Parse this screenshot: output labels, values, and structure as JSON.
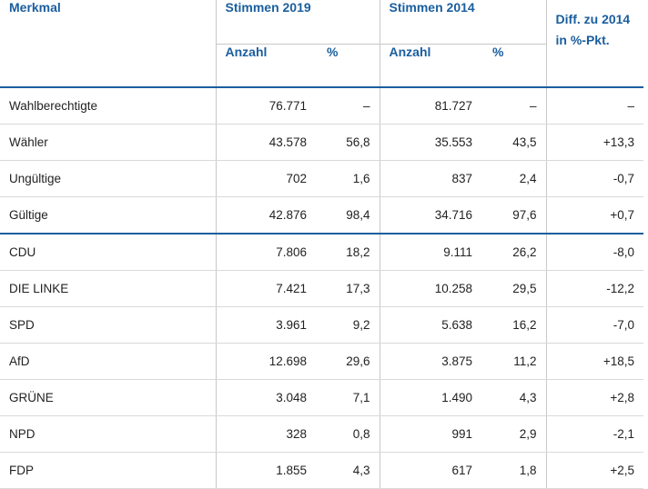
{
  "table": {
    "headers": {
      "merkmal": "Merkmal",
      "stimmen_2019": "Stimmen 2019",
      "stimmen_2014": "Stimmen 2014",
      "diff": "Diff. zu 2014 in %-Pkt.",
      "anzahl": "Anzahl",
      "percent": "%"
    },
    "rows": [
      {
        "label": "Wahlberechtigte",
        "a2019": "76.771",
        "p2019": "–",
        "a2014": "81.727",
        "p2014": "–",
        "diff": "–"
      },
      {
        "label": "Wähler",
        "a2019": "43.578",
        "p2019": "56,8",
        "a2014": "35.553",
        "p2014": "43,5",
        "diff": "+13,3"
      },
      {
        "label": "Ungültige",
        "a2019": "702",
        "p2019": "1,6",
        "a2014": "837",
        "p2014": "2,4",
        "diff": "-0,7"
      },
      {
        "label": "Gültige",
        "a2019": "42.876",
        "p2019": "98,4",
        "a2014": "34.716",
        "p2014": "97,6",
        "diff": "+0,7"
      },
      {
        "label": "CDU",
        "a2019": "7.806",
        "p2019": "18,2",
        "a2014": "9.111",
        "p2014": "26,2",
        "diff": "-8,0"
      },
      {
        "label": "DIE LINKE",
        "a2019": "7.421",
        "p2019": "17,3",
        "a2014": "10.258",
        "p2014": "29,5",
        "diff": "-12,2"
      },
      {
        "label": "SPD",
        "a2019": "3.961",
        "p2019": "9,2",
        "a2014": "5.638",
        "p2014": "16,2",
        "diff": "-7,0"
      },
      {
        "label": "AfD",
        "a2019": "12.698",
        "p2019": "29,6",
        "a2014": "3.875",
        "p2014": "11,2",
        "diff": "+18,5"
      },
      {
        "label": "GRÜNE",
        "a2019": "3.048",
        "p2019": "7,1",
        "a2014": "1.490",
        "p2014": "4,3",
        "diff": "+2,8"
      },
      {
        "label": "NPD",
        "a2019": "328",
        "p2019": "0,8",
        "a2014": "991",
        "p2014": "2,9",
        "diff": "-2,1"
      },
      {
        "label": "FDP",
        "a2019": "1.855",
        "p2019": "4,3",
        "a2014": "617",
        "p2014": "1,8",
        "diff": "+2,5"
      }
    ]
  }
}
